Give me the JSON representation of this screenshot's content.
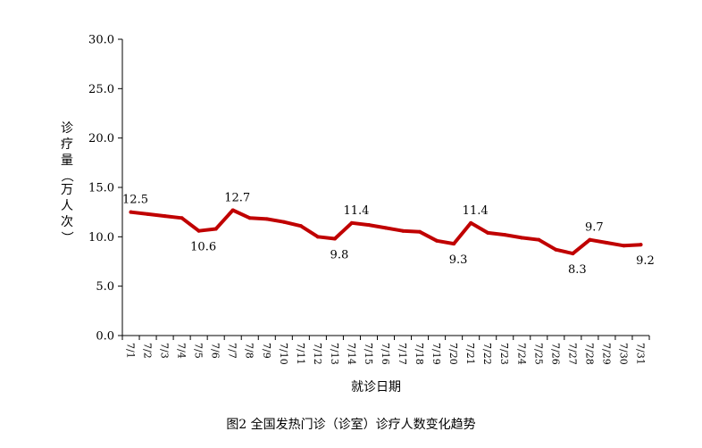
{
  "chart_data": {
    "type": "line",
    "title": "",
    "caption": "图2 全国发热门诊（诊室）诊疗人数变化趋势",
    "xlabel": "就诊日期",
    "ylabel": "诊疗量（万人次）",
    "ylim": [
      0,
      30
    ],
    "yticks": [
      "0.0",
      "5.0",
      "10.0",
      "15.0",
      "20.0",
      "25.0",
      "30.0"
    ],
    "grid": false,
    "legend": "none",
    "line_color": "#c00000",
    "categories": [
      "7/1",
      "7/2",
      "7/3",
      "7/4",
      "7/5",
      "7/6",
      "7/7",
      "7/8",
      "7/9",
      "7/10",
      "7/11",
      "7/12",
      "7/13",
      "7/14",
      "7/15",
      "7/16",
      "7/17",
      "7/18",
      "7/19",
      "7/20",
      "7/21",
      "7/22",
      "7/23",
      "7/24",
      "7/25",
      "7/26",
      "7/27",
      "7/28",
      "7/29",
      "7/30",
      "7/31"
    ],
    "series": [
      {
        "values": [
          12.5,
          12.3,
          12.1,
          11.9,
          10.6,
          10.8,
          12.7,
          11.9,
          11.8,
          11.5,
          11.1,
          10.0,
          9.8,
          11.4,
          11.2,
          10.9,
          10.6,
          10.5,
          9.6,
          9.3,
          11.4,
          10.4,
          10.2,
          9.9,
          9.7,
          8.7,
          8.3,
          9.7,
          9.4,
          9.1,
          9.2
        ]
      }
    ],
    "data_labels": [
      {
        "index": 0,
        "text": "12.5",
        "pos": "above"
      },
      {
        "index": 4,
        "text": "10.6",
        "pos": "below"
      },
      {
        "index": 6,
        "text": "12.7",
        "pos": "above"
      },
      {
        "index": 12,
        "text": "9.8",
        "pos": "below"
      },
      {
        "index": 13,
        "text": "11.4",
        "pos": "above"
      },
      {
        "index": 19,
        "text": "9.3",
        "pos": "below"
      },
      {
        "index": 20,
        "text": "11.4",
        "pos": "above"
      },
      {
        "index": 26,
        "text": "8.3",
        "pos": "below"
      },
      {
        "index": 27,
        "text": "9.7",
        "pos": "above"
      },
      {
        "index": 30,
        "text": "9.2",
        "pos": "below"
      }
    ]
  }
}
